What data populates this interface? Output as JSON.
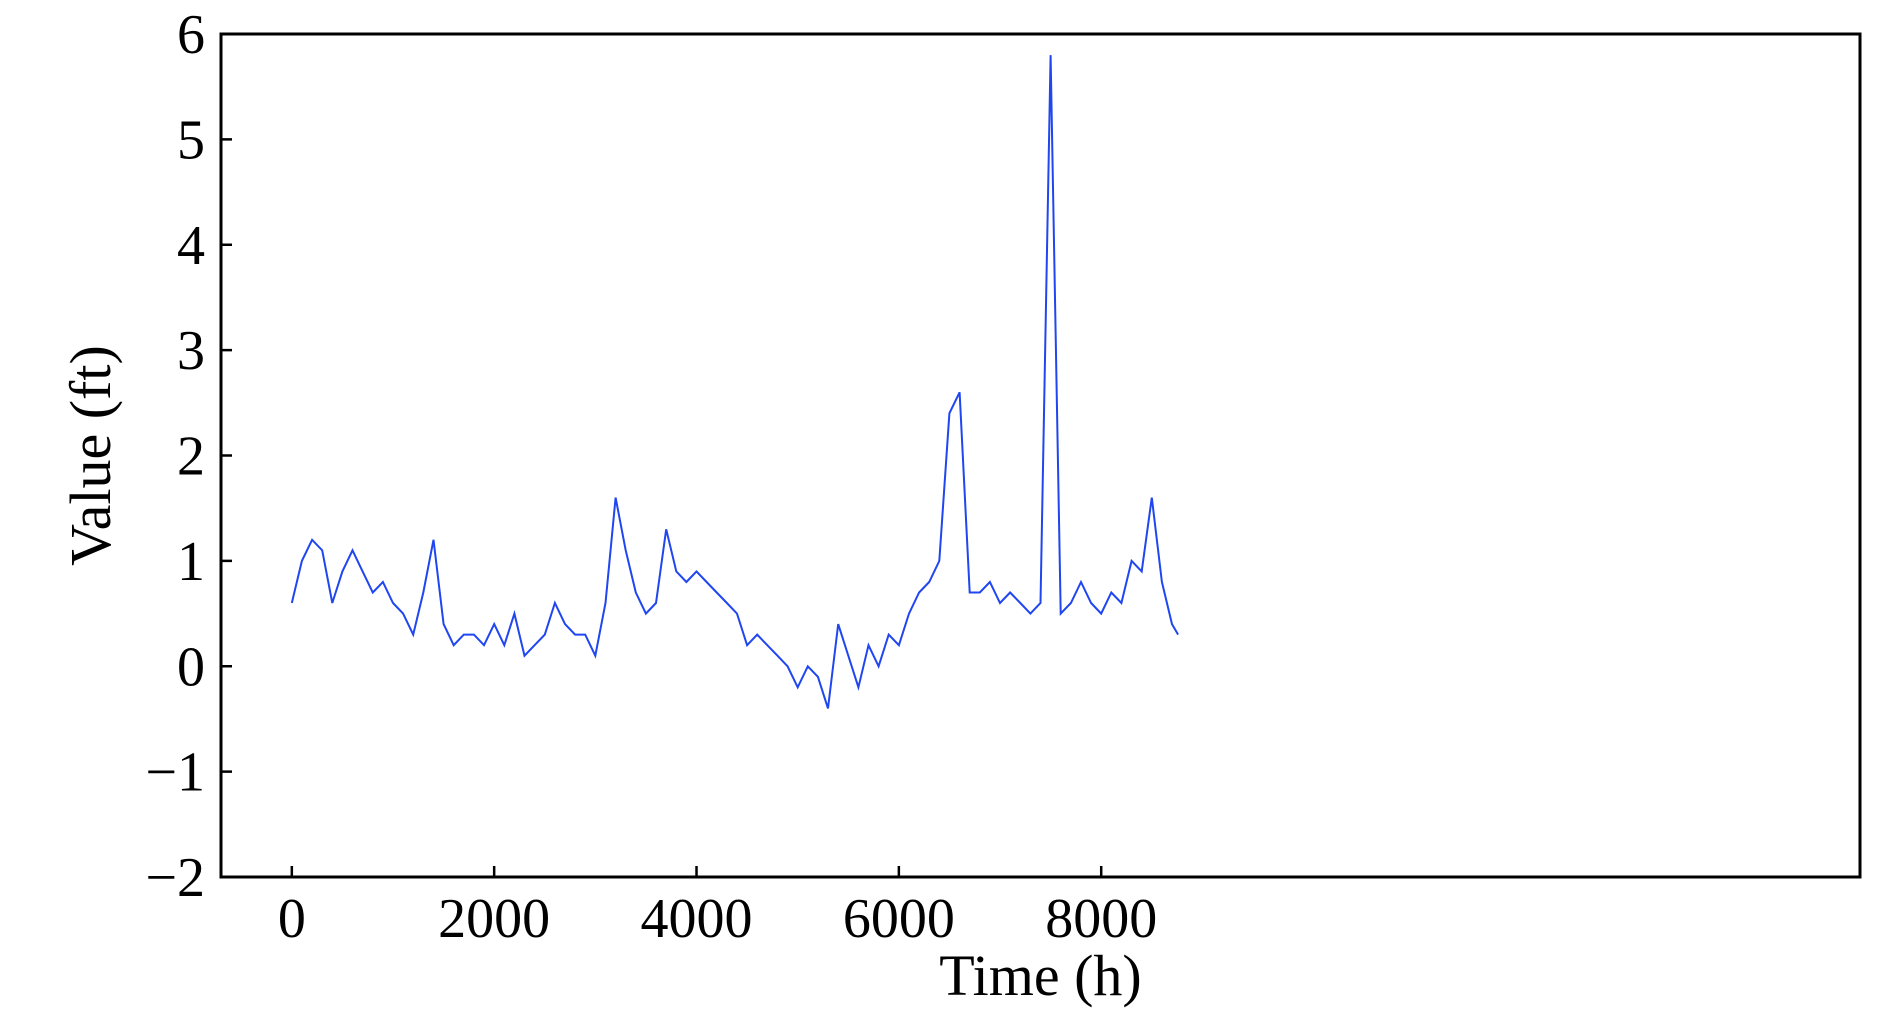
{
  "chart_data": {
    "type": "line",
    "title": "",
    "xlabel": "Time (h)",
    "ylabel": "Value (ft)",
    "xlim": [
      -700,
      15500
    ],
    "ylim": [
      -2,
      6
    ],
    "x_ticks": [
      0,
      2000,
      4000,
      6000,
      8000
    ],
    "x_tick_labels": [
      "0",
      "2000",
      "4000",
      "6000",
      "8000"
    ],
    "y_ticks": [
      -2,
      -1,
      0,
      1,
      2,
      3,
      4,
      5,
      6
    ],
    "y_tick_labels": [
      "−2",
      "−1",
      "0",
      "1",
      "2",
      "3",
      "4",
      "5",
      "6"
    ],
    "grid": false,
    "legend": "none",
    "series": [
      {
        "color": "#1f46f0",
        "x": [
          0,
          100,
          200,
          300,
          400,
          500,
          600,
          700,
          800,
          900,
          1000,
          1100,
          1200,
          1300,
          1400,
          1500,
          1600,
          1700,
          1800,
          1900,
          2000,
          2100,
          2200,
          2300,
          2400,
          2500,
          2600,
          2700,
          2800,
          2900,
          3000,
          3100,
          3200,
          3300,
          3400,
          3500,
          3600,
          3700,
          3800,
          3900,
          4000,
          4100,
          4200,
          4300,
          4400,
          4500,
          4600,
          4700,
          4800,
          4900,
          5000,
          5100,
          5200,
          5300,
          5400,
          5500,
          5600,
          5700,
          5800,
          5900,
          6000,
          6100,
          6200,
          6300,
          6400,
          6500,
          6600,
          6700,
          6800,
          6900,
          7000,
          7100,
          7200,
          7300,
          7400,
          7500,
          7600,
          7700,
          7800,
          7900,
          8000,
          8100,
          8200,
          8300,
          8400,
          8500,
          8600,
          8700,
          8760
        ],
        "y": [
          0.6,
          1.0,
          1.2,
          1.1,
          0.6,
          0.9,
          1.1,
          0.9,
          0.7,
          0.8,
          0.6,
          0.5,
          0.3,
          0.7,
          1.2,
          0.4,
          0.2,
          0.3,
          0.3,
          0.2,
          0.4,
          0.2,
          0.5,
          0.1,
          0.2,
          0.3,
          0.6,
          0.4,
          0.3,
          0.3,
          0.1,
          0.6,
          1.6,
          1.1,
          0.7,
          0.5,
          0.6,
          1.3,
          0.9,
          0.8,
          0.9,
          0.8,
          0.7,
          0.6,
          0.5,
          0.2,
          0.3,
          0.2,
          0.1,
          0.0,
          -0.2,
          0.0,
          -0.1,
          -0.4,
          0.4,
          0.1,
          -0.2,
          0.2,
          0.0,
          0.3,
          0.2,
          0.5,
          0.7,
          0.8,
          1.0,
          2.4,
          2.6,
          0.7,
          0.7,
          0.8,
          0.6,
          0.7,
          0.6,
          0.5,
          0.6,
          5.8,
          0.5,
          0.6,
          0.8,
          0.6,
          0.5,
          0.7,
          0.6,
          1.0,
          0.9,
          1.6,
          0.8,
          0.4,
          0.3
        ]
      }
    ]
  }
}
